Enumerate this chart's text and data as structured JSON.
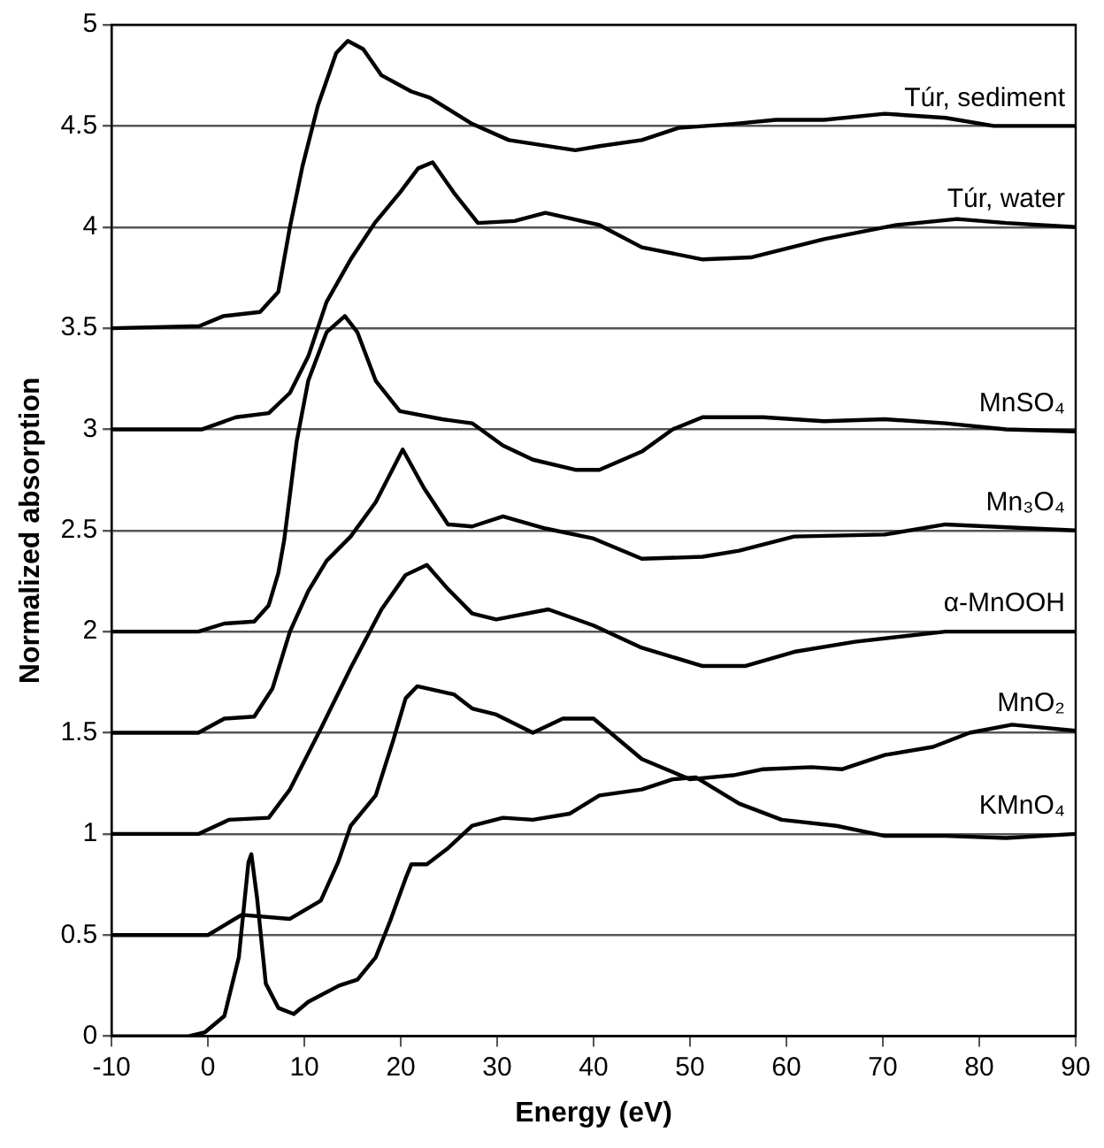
{
  "chart_data": {
    "type": "line",
    "xlabel": "Energy (eV)",
    "ylabel": "Normalized absorption",
    "xlim": [
      -10,
      90
    ],
    "xticks": [
      -10,
      0,
      10,
      20,
      30,
      40,
      50,
      60,
      70,
      80,
      90
    ],
    "ylim": [
      0,
      5
    ],
    "yticks": [
      0,
      0.5,
      1,
      1.5,
      2,
      2.5,
      3,
      3.5,
      4,
      4.5,
      5
    ],
    "grid": "y",
    "legend": false,
    "marker": "none",
    "line_style": "solid",
    "series": [
      {
        "name": "Túr, sediment",
        "color": "#000000",
        "x": [
          -10,
          -0.9,
          1.6,
          5.4,
          7.3,
          8.5,
          9.8,
          11.4,
          13.3,
          14.5,
          16.1,
          18,
          21.1,
          23,
          27.4,
          31.2,
          38.1,
          40.6,
          45,
          48.8,
          54.5,
          58.9,
          63.9,
          70.2,
          76.5,
          81.5,
          90
        ],
        "values": [
          3.5,
          3.51,
          3.56,
          3.58,
          3.68,
          4.0,
          4.3,
          4.6,
          4.86,
          4.92,
          4.88,
          4.75,
          4.67,
          4.64,
          4.51,
          4.43,
          4.38,
          4.4,
          4.43,
          4.49,
          4.51,
          4.53,
          4.53,
          4.56,
          4.54,
          4.5,
          4.5
        ]
      },
      {
        "name": "Túr, water",
        "color": "#000000",
        "x": [
          -10,
          -0.6,
          2.9,
          6.3,
          8.5,
          10.4,
          12.3,
          14.8,
          17.3,
          19.9,
          21.8,
          23.3,
          25.5,
          28,
          31.8,
          35,
          40.6,
          45,
          51.3,
          56.3,
          63.9,
          71.4,
          77.7,
          82.8,
          90
        ],
        "values": [
          3.0,
          3.0,
          3.06,
          3.08,
          3.18,
          3.36,
          3.63,
          3.84,
          4.02,
          4.17,
          4.29,
          4.32,
          4.17,
          4.02,
          4.03,
          4.07,
          4.01,
          3.9,
          3.84,
          3.85,
          3.94,
          4.01,
          4.04,
          4.02,
          4.0
        ]
      },
      {
        "name": "MnSO₄",
        "color": "#000000",
        "x": [
          -10,
          -1,
          1.7,
          4.8,
          6.3,
          7.3,
          7.9,
          9.2,
          10.4,
          12.3,
          14.2,
          15.5,
          17.4,
          19.9,
          24.3,
          27.4,
          30.6,
          33.7,
          38.1,
          40.6,
          45,
          48.2,
          51.3,
          57.6,
          63.9,
          70.2,
          76.5,
          82.8,
          90
        ],
        "values": [
          2.0,
          2.0,
          2.04,
          2.05,
          2.13,
          2.29,
          2.45,
          2.94,
          3.24,
          3.48,
          3.56,
          3.48,
          3.24,
          3.09,
          3.05,
          3.03,
          2.92,
          2.85,
          2.8,
          2.8,
          2.89,
          3.0,
          3.06,
          3.06,
          3.04,
          3.05,
          3.03,
          3.0,
          2.99
        ]
      },
      {
        "name": "Mn₃O₄",
        "color": "#000000",
        "x": [
          -10,
          -1,
          1.7,
          4.8,
          6.7,
          8.5,
          10.4,
          12.3,
          14.8,
          17.4,
          20.2,
          22.4,
          24.9,
          27.4,
          30.6,
          35,
          40,
          45,
          51.3,
          55.1,
          60.8,
          70.2,
          76.5,
          90
        ],
        "values": [
          1.5,
          1.5,
          1.57,
          1.58,
          1.72,
          2.0,
          2.2,
          2.35,
          2.47,
          2.64,
          2.9,
          2.71,
          2.53,
          2.52,
          2.57,
          2.51,
          2.46,
          2.36,
          2.37,
          2.4,
          2.47,
          2.48,
          2.53,
          2.5
        ]
      },
      {
        "name": "α-MnOOH",
        "color": "#000000",
        "x": [
          -10,
          -1,
          2.2,
          6.3,
          8.5,
          11.7,
          14.8,
          18,
          20.5,
          22.7,
          24.9,
          27.4,
          29.9,
          35.3,
          40,
          45,
          51.3,
          55.7,
          60.8,
          67.1,
          76.5,
          90
        ],
        "values": [
          1.0,
          1.0,
          1.07,
          1.08,
          1.22,
          1.52,
          1.82,
          2.11,
          2.28,
          2.33,
          2.21,
          2.09,
          2.06,
          2.11,
          2.03,
          1.92,
          1.83,
          1.83,
          1.9,
          1.95,
          2.0,
          2.0
        ]
      },
      {
        "name": "MnO₂",
        "color": "#000000",
        "x": [
          -10,
          0,
          3.5,
          8.5,
          11.7,
          13.5,
          14.8,
          17.4,
          19.2,
          20.5,
          21.7,
          25.5,
          27.4,
          29.9,
          33.7,
          36.8,
          40,
          45,
          50,
          54.5,
          57.6,
          62.6,
          65.8,
          70.2,
          75.2,
          79,
          83.4,
          90
        ],
        "values": [
          0.5,
          0.5,
          0.6,
          0.58,
          0.67,
          0.86,
          1.04,
          1.19,
          1.46,
          1.67,
          1.73,
          1.69,
          1.62,
          1.59,
          1.5,
          1.57,
          1.57,
          1.37,
          1.27,
          1.29,
          1.32,
          1.33,
          1.32,
          1.39,
          1.43,
          1.5,
          1.54,
          1.51
        ]
      },
      {
        "name": "KMnO₄",
        "color": "#000000",
        "x": [
          -10,
          -2,
          -0.3,
          1.7,
          3.2,
          4.2,
          4.5,
          5.1,
          6,
          7.3,
          8.9,
          10.4,
          13.6,
          15.5,
          17.4,
          18.9,
          20.5,
          21.1,
          22.7,
          24.9,
          27.4,
          30.6,
          33.7,
          37.5,
          40.6,
          45,
          48.2,
          50.6,
          55.1,
          59.5,
          65.2,
          70.2,
          76.5,
          82.8,
          90
        ],
        "values": [
          0,
          0,
          0.02,
          0.1,
          0.39,
          0.86,
          0.9,
          0.68,
          0.26,
          0.14,
          0.11,
          0.17,
          0.25,
          0.28,
          0.39,
          0.57,
          0.78,
          0.85,
          0.85,
          0.93,
          1.04,
          1.08,
          1.07,
          1.1,
          1.19,
          1.22,
          1.27,
          1.28,
          1.15,
          1.07,
          1.04,
          0.99,
          0.99,
          0.98,
          1.0
        ]
      }
    ]
  }
}
